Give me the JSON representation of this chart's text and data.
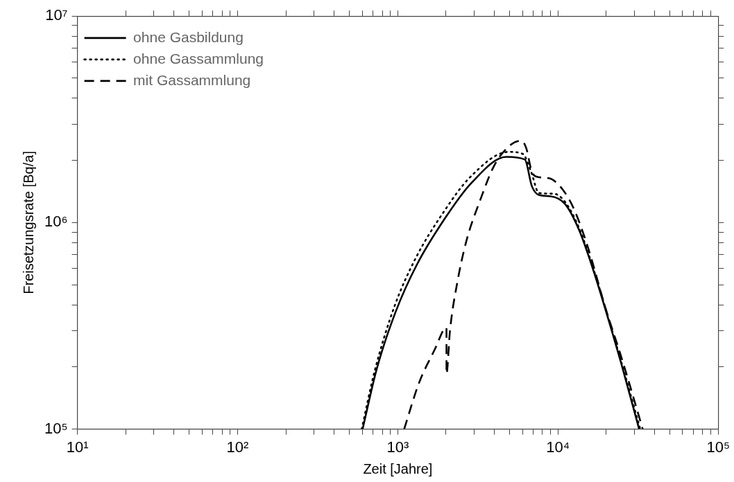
{
  "chart_data": {
    "type": "line",
    "xlabel": "Zeit [Jahre]",
    "ylabel": "Freisetzungsrate [Bq/a]",
    "log": "xy",
    "legend": "top left",
    "grid": false,
    "line_style": "solid",
    "marker": "none",
    "xlim": [
      10,
      100000
    ],
    "ylim": [
      100000,
      10000000
    ],
    "xticks": [
      {
        "value": 10,
        "label": "10¹"
      },
      {
        "value": 20,
        "label": null
      },
      {
        "value": 30,
        "label": null
      },
      {
        "value": 40,
        "label": null
      },
      {
        "value": 50,
        "label": null
      },
      {
        "value": 60,
        "label": null
      },
      {
        "value": 70,
        "label": null
      },
      {
        "value": 80,
        "label": null
      },
      {
        "value": 90,
        "label": null
      },
      {
        "value": 100,
        "label": "10²"
      },
      {
        "value": 200,
        "label": null
      },
      {
        "value": 300,
        "label": null
      },
      {
        "value": 400,
        "label": null
      },
      {
        "value": 500,
        "label": null
      },
      {
        "value": 600,
        "label": null
      },
      {
        "value": 700,
        "label": null
      },
      {
        "value": 800,
        "label": null
      },
      {
        "value": 900,
        "label": null
      },
      {
        "value": 1000,
        "label": "10³"
      },
      {
        "value": 2000,
        "label": null
      },
      {
        "value": 3000,
        "label": null
      },
      {
        "value": 4000,
        "label": null
      },
      {
        "value": 5000,
        "label": null
      },
      {
        "value": 6000,
        "label": null
      },
      {
        "value": 7000,
        "label": null
      },
      {
        "value": 8000,
        "label": null
      },
      {
        "value": 9000,
        "label": null
      },
      {
        "value": 10000,
        "label": "10⁴"
      },
      {
        "value": 20000,
        "label": null
      },
      {
        "value": 30000,
        "label": null
      },
      {
        "value": 40000,
        "label": null
      },
      {
        "value": 50000,
        "label": null
      },
      {
        "value": 60000,
        "label": null
      },
      {
        "value": 70000,
        "label": null
      },
      {
        "value": 80000,
        "label": null
      },
      {
        "value": 90000,
        "label": null
      },
      {
        "value": 100000,
        "label": "10⁵"
      }
    ],
    "yticks": [
      {
        "value": 100000,
        "label": "10⁵"
      },
      {
        "value": 200000,
        "label": null
      },
      {
        "value": 300000,
        "label": null
      },
      {
        "value": 400000,
        "label": null
      },
      {
        "value": 500000,
        "label": null
      },
      {
        "value": 600000,
        "label": null
      },
      {
        "value": 700000,
        "label": null
      },
      {
        "value": 800000,
        "label": null
      },
      {
        "value": 900000,
        "label": null
      },
      {
        "value": 1000000,
        "label": "10⁶"
      },
      {
        "value": 2000000,
        "label": null
      },
      {
        "value": 3000000,
        "label": null
      },
      {
        "value": 4000000,
        "label": null
      },
      {
        "value": 5000000,
        "label": null
      },
      {
        "value": 6000000,
        "label": null
      },
      {
        "value": 7000000,
        "label": null
      },
      {
        "value": 8000000,
        "label": null
      },
      {
        "value": 9000000,
        "label": null
      },
      {
        "value": 10000000,
        "label": "10⁷"
      }
    ],
    "series": [
      {
        "name": "ohne Gasbildung",
        "color": "#000000",
        "x": [
          603,
          738,
          970,
          1315,
          1973,
          2870,
          4760,
          6210,
          6870,
          7600,
          9030,
          11070,
          13550,
          16600,
          20300,
          24900,
          32100
        ],
        "values": [
          100000,
          195000,
          370000,
          625000,
          1050000,
          1550000,
          2080000,
          2020000,
          1500000,
          1360000,
          1340000,
          1230000,
          920000,
          590000,
          355000,
          206000,
          100000
        ]
      },
      {
        "name": "ohne Gassammlung",
        "color": "#000000",
        "line_style": "dotted",
        "x": [
          595,
          716,
          950,
          1290,
          1940,
          2830,
          4920,
          6030,
          6800,
          7600,
          9400,
          11070,
          13550,
          16600,
          20300,
          24900,
          32600
        ],
        "values": [
          100000,
          190000,
          390000,
          670000,
          1130000,
          1660000,
          2200000,
          2150000,
          1760000,
          1390000,
          1380000,
          1260000,
          940000,
          600000,
          360000,
          210000,
          100000
        ]
      },
      {
        "name": "mit Gassammlung",
        "color": "#000000",
        "line_style": "dashed",
        "x": [
          1096,
          1355,
          1730,
          1933,
          2013,
          2013,
          2117,
          2345,
          2675,
          3275,
          4015,
          5070,
          5900,
          6340,
          6870,
          7530,
          8770,
          10740,
          12600,
          15450,
          19700,
          24900,
          33800
        ],
        "values": [
          100000,
          167000,
          250000,
          303000,
          310000,
          185000,
          300000,
          507000,
          810000,
          1290000,
          1900000,
          2380000,
          2490000,
          2290000,
          1760000,
          1660000,
          1640000,
          1440000,
          1160000,
          750000,
          390000,
          222000,
          100000
        ]
      }
    ]
  }
}
